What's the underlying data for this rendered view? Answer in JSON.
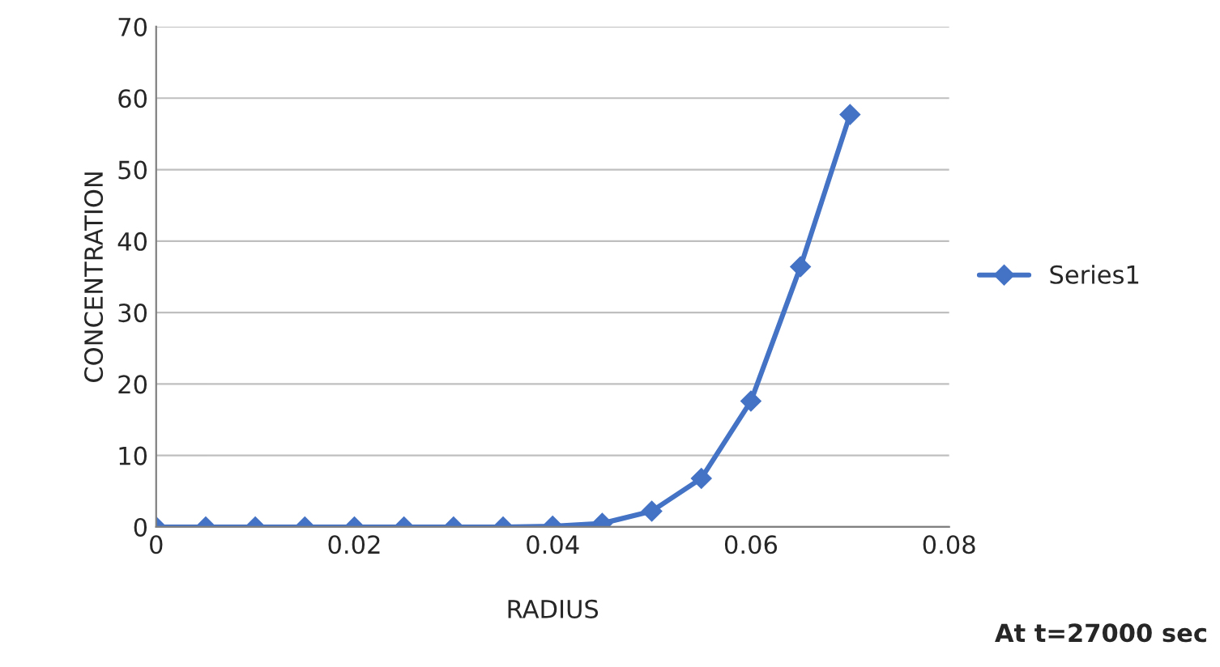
{
  "chart_data": {
    "type": "line",
    "xlabel": "RADIUS",
    "ylabel": "CONCENTRATION",
    "x": [
      0,
      0.005,
      0.01,
      0.015,
      0.02,
      0.025,
      0.03,
      0.035,
      0.04,
      0.045,
      0.05,
      0.055,
      0.06,
      0.065,
      0.07
    ],
    "series": [
      {
        "name": "Series1",
        "color": "#4472c4",
        "values": [
          0,
          0,
          0,
          0,
          0,
          0,
          0,
          0,
          0.1,
          0.5,
          2.2,
          6.8,
          17.6,
          36.4,
          57.7
        ]
      }
    ],
    "xlim": [
      0,
      0.08
    ],
    "xticks": [
      0,
      0.02,
      0.04,
      0.06,
      0.08
    ],
    "ylim": [
      0,
      70
    ],
    "yticks": [
      0,
      10,
      20,
      30,
      40,
      50,
      60,
      70
    ],
    "grid": "y",
    "legend": "right",
    "marker": "diamond",
    "line_style": "solid",
    "annotations": [
      "At t=27000 sec"
    ]
  }
}
